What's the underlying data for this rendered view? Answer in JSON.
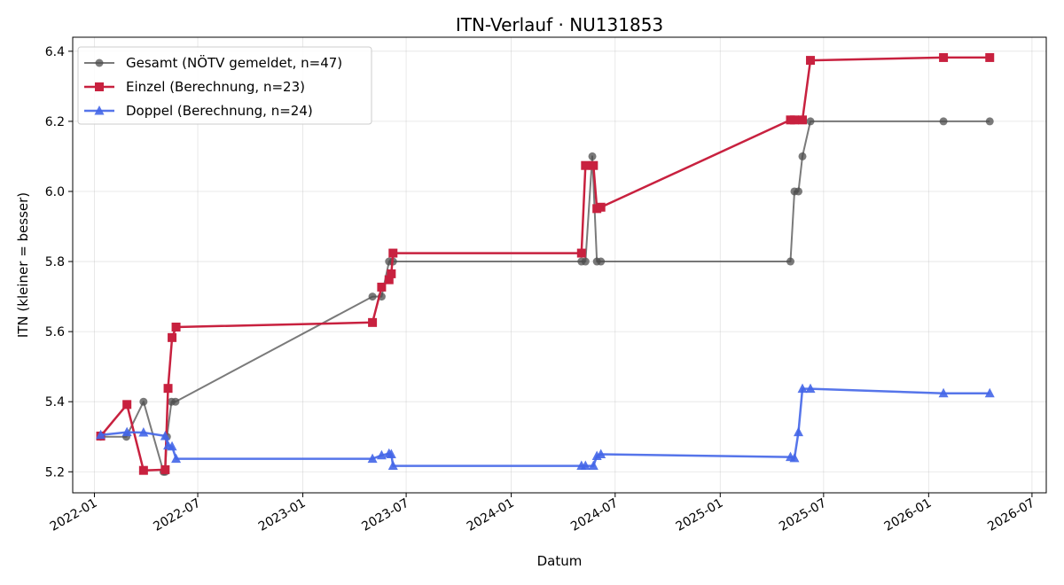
{
  "chart_data": {
    "type": "line",
    "title": "ITN-Verlauf · NU131853",
    "xlabel": "Datum",
    "ylabel": "ITN  (kleiner = besser)",
    "xlim": [
      "2021-11-24",
      "2026-07-26"
    ],
    "ylim": [
      5.14,
      6.44
    ],
    "x_ticks": [
      "2022-01",
      "2022-07",
      "2023-01",
      "2023-07",
      "2024-01",
      "2024-07",
      "2025-01",
      "2025-07",
      "2026-01",
      "2026-07"
    ],
    "y_ticks": [
      5.2,
      5.4,
      5.6,
      5.8,
      6.0,
      6.2,
      6.4
    ],
    "grid": true,
    "legend_position": "top-left",
    "series": [
      {
        "name": "Gesamt (NÖTV gemeldet, n=47)",
        "color": "#4d4d4d",
        "marker": "circle",
        "points": [
          [
            "2022-01-12",
            5.3
          ],
          [
            "2022-02-26",
            5.3
          ],
          [
            "2022-03-28",
            5.4
          ],
          [
            "2022-05-02",
            5.2
          ],
          [
            "2022-05-05",
            5.2
          ],
          [
            "2022-05-08",
            5.3
          ],
          [
            "2022-05-16",
            5.4
          ],
          [
            "2022-05-23",
            5.4
          ],
          [
            "2023-05-03",
            5.7
          ],
          [
            "2023-05-19",
            5.7
          ],
          [
            "2023-06-01",
            5.8
          ],
          [
            "2023-06-08",
            5.8
          ],
          [
            "2024-05-03",
            5.8
          ],
          [
            "2024-05-10",
            5.8
          ],
          [
            "2024-05-22",
            6.1
          ],
          [
            "2024-05-30",
            5.8
          ],
          [
            "2024-06-06",
            5.8
          ],
          [
            "2025-05-04",
            5.8
          ],
          [
            "2025-05-11",
            6.0
          ],
          [
            "2025-05-18",
            6.0
          ],
          [
            "2025-05-25",
            6.1
          ],
          [
            "2025-06-08",
            6.2
          ],
          [
            "2026-01-27",
            6.2
          ],
          [
            "2026-04-18",
            6.2
          ]
        ]
      },
      {
        "name": "Einzel (Berechnung, n=23)",
        "color": "#c8213f",
        "marker": "square",
        "points": [
          [
            "2022-01-12",
            5.302
          ],
          [
            "2022-02-27",
            5.392
          ],
          [
            "2022-03-28",
            5.204
          ],
          [
            "2022-05-05",
            5.206
          ],
          [
            "2022-05-10",
            5.438
          ],
          [
            "2022-05-17",
            5.583
          ],
          [
            "2022-05-24",
            5.613
          ],
          [
            "2023-05-03",
            5.626
          ],
          [
            "2023-05-19",
            5.727
          ],
          [
            "2023-06-01",
            5.748
          ],
          [
            "2023-06-05",
            5.765
          ],
          [
            "2023-06-08",
            5.824
          ],
          [
            "2024-05-03",
            5.824
          ],
          [
            "2024-05-10",
            6.074
          ],
          [
            "2024-05-24",
            6.074
          ],
          [
            "2024-05-30",
            5.951
          ],
          [
            "2024-06-06",
            5.955
          ],
          [
            "2025-05-04",
            6.204
          ],
          [
            "2025-05-11",
            6.204
          ],
          [
            "2025-05-25",
            6.204
          ],
          [
            "2025-06-08",
            6.374
          ],
          [
            "2026-01-27",
            6.382
          ],
          [
            "2026-04-18",
            6.382
          ]
        ]
      },
      {
        "name": "Doppel (Berechnung, n=24)",
        "color": "#4466e8",
        "marker": "triangle",
        "points": [
          [
            "2022-01-12",
            5.305
          ],
          [
            "2022-02-27",
            5.313
          ],
          [
            "2022-03-28",
            5.312
          ],
          [
            "2022-05-05",
            5.302
          ],
          [
            "2022-05-10",
            5.275
          ],
          [
            "2022-05-17",
            5.272
          ],
          [
            "2022-05-24",
            5.237
          ],
          [
            "2023-05-03",
            5.237
          ],
          [
            "2023-05-19",
            5.247
          ],
          [
            "2023-06-01",
            5.252
          ],
          [
            "2023-06-05",
            5.25
          ],
          [
            "2023-06-08",
            5.217
          ],
          [
            "2024-05-03",
            5.217
          ],
          [
            "2024-05-10",
            5.217
          ],
          [
            "2024-05-24",
            5.217
          ],
          [
            "2024-05-30",
            5.245
          ],
          [
            "2024-06-06",
            5.25
          ],
          [
            "2025-05-04",
            5.242
          ],
          [
            "2025-05-11",
            5.239
          ],
          [
            "2025-05-18",
            5.313
          ],
          [
            "2025-05-25",
            5.437
          ],
          [
            "2025-06-08",
            5.437
          ],
          [
            "2026-01-27",
            5.424
          ],
          [
            "2026-04-18",
            5.424
          ]
        ]
      }
    ]
  }
}
